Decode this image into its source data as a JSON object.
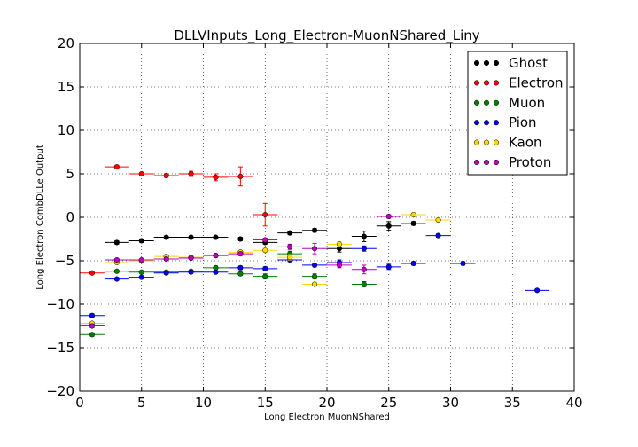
{
  "chart_data": {
    "type": "scatter",
    "title": "DLLVInputs_Long_Electron-MuonNShared_Liny",
    "xlabel": "Long Electron MuonNShared",
    "ylabel": "Long Electron CombDLLe Output",
    "xlim": [
      0,
      40
    ],
    "ylim": [
      -20,
      20
    ],
    "x_ticks": [
      "0",
      "5",
      "10",
      "15",
      "20",
      "25",
      "30",
      "35",
      "40"
    ],
    "y_ticks": [
      "−20",
      "−15",
      "−10",
      "−5",
      "0",
      "5",
      "10",
      "15",
      "20"
    ],
    "grid": true,
    "legend_position": "top-right",
    "series": [
      {
        "name": "Ghost",
        "color": "#000000",
        "points": [
          {
            "x": 3,
            "y": -2.9,
            "yerr": 0.2
          },
          {
            "x": 5,
            "y": -2.7,
            "yerr": 0.2
          },
          {
            "x": 7,
            "y": -2.3,
            "yerr": 0.15
          },
          {
            "x": 9,
            "y": -2.3,
            "yerr": 0.15
          },
          {
            "x": 11,
            "y": -2.3,
            "yerr": 0.15
          },
          {
            "x": 13,
            "y": -2.5,
            "yerr": 0.2
          },
          {
            "x": 15,
            "y": -2.9,
            "yerr": 0.2
          },
          {
            "x": 17,
            "y": -1.8,
            "yerr": 0.2
          },
          {
            "x": 19,
            "y": -1.5,
            "yerr": 0.2
          },
          {
            "x": 21,
            "y": -3.6,
            "yerr": 0.4
          },
          {
            "x": 23,
            "y": -2.2,
            "yerr": 0.6
          },
          {
            "x": 25,
            "y": -1.0,
            "yerr": 0.5
          },
          {
            "x": 27,
            "y": -0.7,
            "yerr": 0.2
          }
        ]
      },
      {
        "name": "Electron",
        "color": "#ff0000",
        "points": [
          {
            "x": 1,
            "y": -6.4,
            "yerr": 0.15
          },
          {
            "x": 3,
            "y": 5.8,
            "yerr": 0.2
          },
          {
            "x": 5,
            "y": 5.0,
            "yerr": 0.15
          },
          {
            "x": 7,
            "y": 4.8,
            "yerr": 0.2
          },
          {
            "x": 9,
            "y": 5.0,
            "yerr": 0.3
          },
          {
            "x": 11,
            "y": 4.6,
            "yerr": 0.4
          },
          {
            "x": 13,
            "y": 4.7,
            "yerr": 1.1
          },
          {
            "x": 15,
            "y": 0.3,
            "yerr": 1.3
          }
        ]
      },
      {
        "name": "Muon",
        "color": "#008000",
        "points": [
          {
            "x": 1,
            "y": -13.5,
            "yerr": 0.2
          },
          {
            "x": 3,
            "y": -6.2,
            "yerr": 0.15
          },
          {
            "x": 5,
            "y": -6.3,
            "yerr": 0.15
          },
          {
            "x": 7,
            "y": -6.3,
            "yerr": 0.15
          },
          {
            "x": 9,
            "y": -6.2,
            "yerr": 0.15
          },
          {
            "x": 11,
            "y": -5.8,
            "yerr": 0.2
          },
          {
            "x": 13,
            "y": -6.5,
            "yerr": 0.2
          },
          {
            "x": 15,
            "y": -6.8,
            "yerr": 0.3
          },
          {
            "x": 17,
            "y": -4.2,
            "yerr": 0.3
          },
          {
            "x": 19,
            "y": -6.8,
            "yerr": 0.3
          },
          {
            "x": 23,
            "y": -7.7,
            "yerr": 0.3
          }
        ]
      },
      {
        "name": "Pion",
        "color": "#0000ff",
        "points": [
          {
            "x": 1,
            "y": -11.3,
            "yerr": 0.2
          },
          {
            "x": 3,
            "y": -7.1,
            "yerr": 0.15
          },
          {
            "x": 5,
            "y": -6.9,
            "yerr": 0.15
          },
          {
            "x": 7,
            "y": -6.4,
            "yerr": 0.15
          },
          {
            "x": 9,
            "y": -6.3,
            "yerr": 0.15
          },
          {
            "x": 11,
            "y": -6.3,
            "yerr": 0.15
          },
          {
            "x": 13,
            "y": -5.8,
            "yerr": 0.2
          },
          {
            "x": 15,
            "y": -5.9,
            "yerr": 0.2
          },
          {
            "x": 17,
            "y": -4.9,
            "yerr": 0.2
          },
          {
            "x": 19,
            "y": -5.5,
            "yerr": 0.2
          },
          {
            "x": 21,
            "y": -5.2,
            "yerr": 0.3
          },
          {
            "x": 23,
            "y": -3.6,
            "yerr": 0.3
          },
          {
            "x": 25,
            "y": -5.7,
            "yerr": 0.3
          },
          {
            "x": 27,
            "y": -5.3,
            "yerr": 0.2
          },
          {
            "x": 29,
            "y": -2.1,
            "yerr": 0.2
          },
          {
            "x": 31,
            "y": -5.3,
            "yerr": 0.2
          },
          {
            "x": 37,
            "y": -8.4,
            "yerr": 0.15
          }
        ]
      },
      {
        "name": "Kaon",
        "color": "#ffd700",
        "points": [
          {
            "x": 1,
            "y": -12.2,
            "yerr": 0.15
          },
          {
            "x": 3,
            "y": -5.2,
            "yerr": 0.15
          },
          {
            "x": 5,
            "y": -5.0,
            "yerr": 0.15
          },
          {
            "x": 7,
            "y": -4.5,
            "yerr": 0.15
          },
          {
            "x": 9,
            "y": -4.6,
            "yerr": 0.15
          },
          {
            "x": 11,
            "y": -4.4,
            "yerr": 0.2
          },
          {
            "x": 13,
            "y": -4.0,
            "yerr": 0.2
          },
          {
            "x": 15,
            "y": -3.8,
            "yerr": 0.2
          },
          {
            "x": 17,
            "y": -4.6,
            "yerr": 0.3
          },
          {
            "x": 19,
            "y": -7.7,
            "yerr": 0.2
          },
          {
            "x": 21,
            "y": -3.1,
            "yerr": 0.3
          },
          {
            "x": 27,
            "y": 0.3,
            "yerr": 0.2
          },
          {
            "x": 29,
            "y": -0.3,
            "yerr": 0.2
          }
        ]
      },
      {
        "name": "Proton",
        "color": "#bf00bf",
        "points": [
          {
            "x": 1,
            "y": -12.5,
            "yerr": 0.2
          },
          {
            "x": 3,
            "y": -4.9,
            "yerr": 0.15
          },
          {
            "x": 5,
            "y": -4.9,
            "yerr": 0.15
          },
          {
            "x": 7,
            "y": -4.8,
            "yerr": 0.15
          },
          {
            "x": 9,
            "y": -4.7,
            "yerr": 0.15
          },
          {
            "x": 11,
            "y": -4.4,
            "yerr": 0.2
          },
          {
            "x": 13,
            "y": -4.2,
            "yerr": 0.2
          },
          {
            "x": 15,
            "y": -2.6,
            "yerr": 0.2
          },
          {
            "x": 17,
            "y": -3.4,
            "yerr": 0.3
          },
          {
            "x": 19,
            "y": -3.6,
            "yerr": 0.6
          },
          {
            "x": 21,
            "y": -5.5,
            "yerr": 0.3
          },
          {
            "x": 23,
            "y": -6.0,
            "yerr": 0.5
          },
          {
            "x": 25,
            "y": 0.1,
            "yerr": 0.2
          }
        ]
      }
    ],
    "x_bin_halfwidth": 1
  }
}
